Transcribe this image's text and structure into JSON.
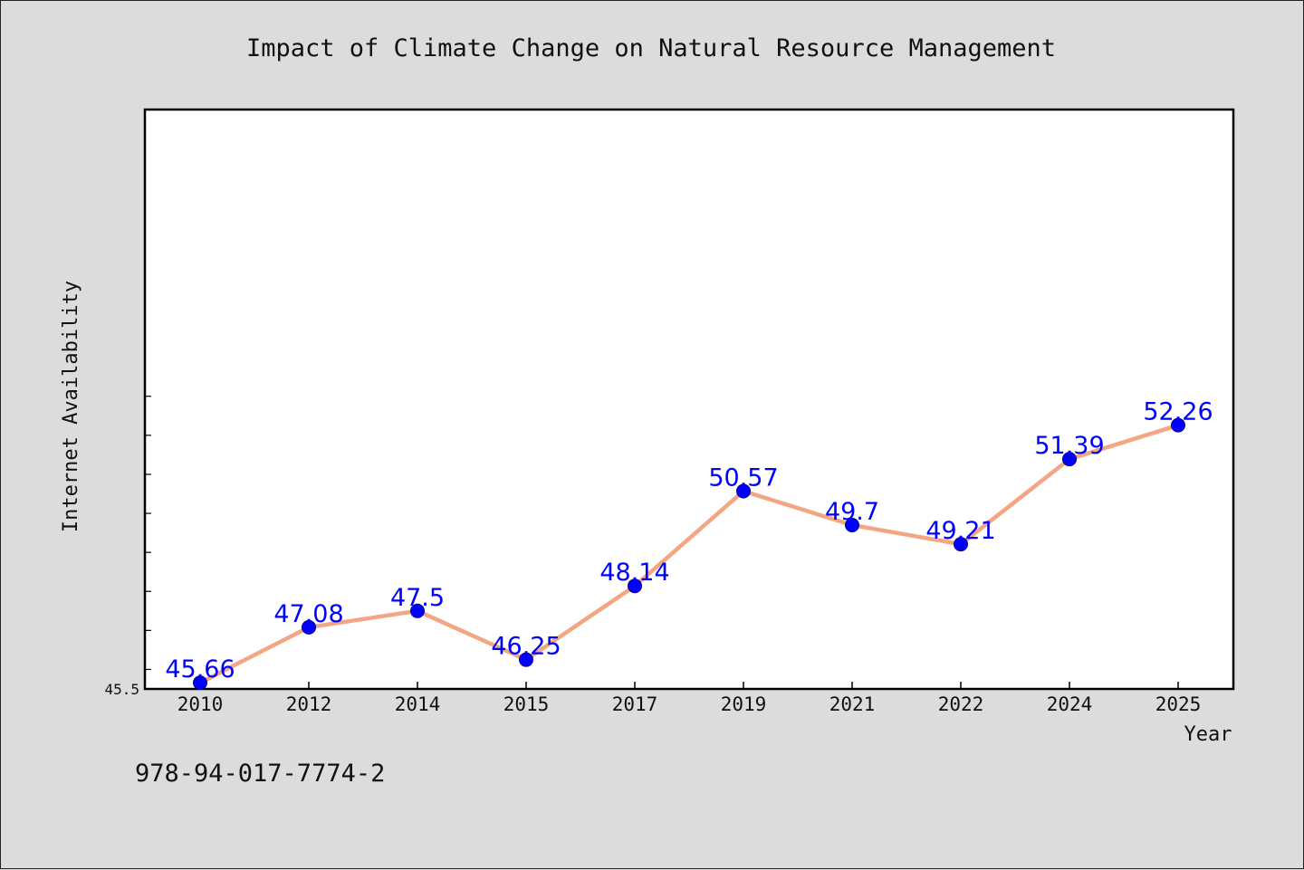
{
  "chart_data": {
    "type": "line",
    "title": "Impact of Climate Change on Natural Resource Management",
    "xlabel": "Year",
    "ylabel": "Internet Availability",
    "categories": [
      "2010",
      "2012",
      "2014",
      "2015",
      "2017",
      "2019",
      "2021",
      "2022",
      "2024",
      "2025"
    ],
    "series": [
      {
        "values": [
          45.66,
          47.08,
          47.5,
          46.25,
          48.14,
          50.57,
          49.7,
          49.21,
          51.39,
          52.26
        ],
        "labels": [
          "45.66",
          "47.08",
          "47.5",
          "46.25",
          "48.14",
          "50.57",
          "49.7",
          "49.21",
          "51.39",
          "52.26"
        ]
      }
    ],
    "ylim": [
      45.5,
      53.0
    ],
    "yticks_labeled": [
      "45.5"
    ],
    "grid": false,
    "legend": "none",
    "colors": {
      "line": "#f4a582",
      "marker": "#0000ff",
      "marker_edge": "#00008b",
      "data_label": "#0000ff"
    }
  },
  "footer": {
    "isbn": "978-94-017-7774-2"
  }
}
